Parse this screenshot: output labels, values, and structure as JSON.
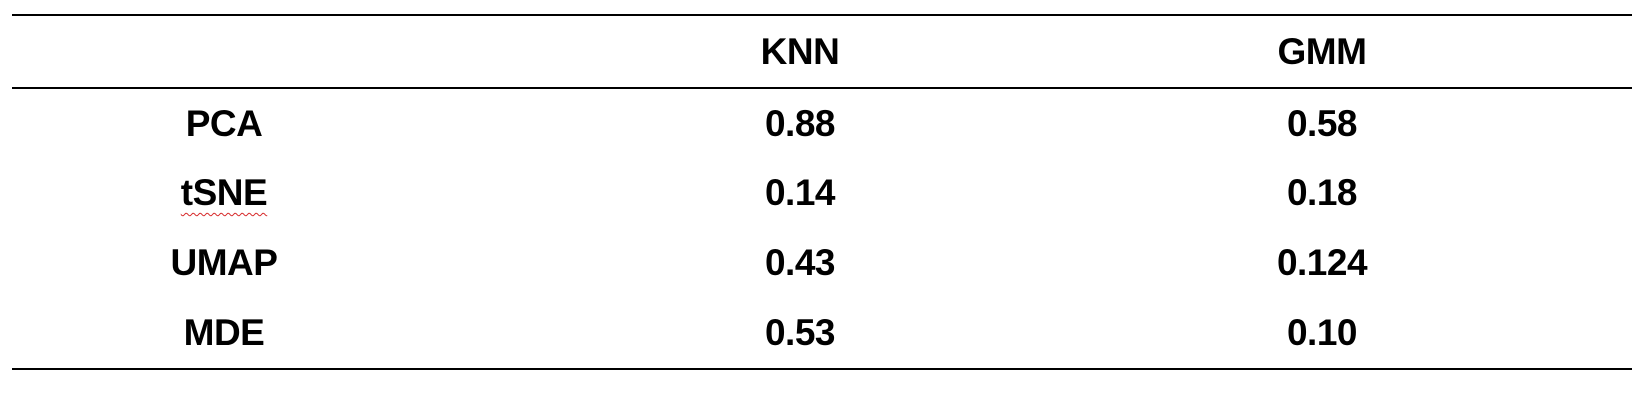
{
  "table": {
    "columns": [
      "",
      "KNN",
      "GMM"
    ],
    "rows": [
      {
        "label": "PCA",
        "knn": "0.88",
        "gmm": "0.58"
      },
      {
        "label": "tSNE",
        "knn": "0.14",
        "gmm": "0.18"
      },
      {
        "label": "UMAP",
        "knn": "0.43",
        "gmm": "0.124"
      },
      {
        "label": "MDE",
        "knn": "0.53",
        "gmm": "0.10"
      }
    ]
  },
  "colors": {
    "text": "#000000",
    "rule": "#000000",
    "spellcheck_underline": "#d62728"
  }
}
